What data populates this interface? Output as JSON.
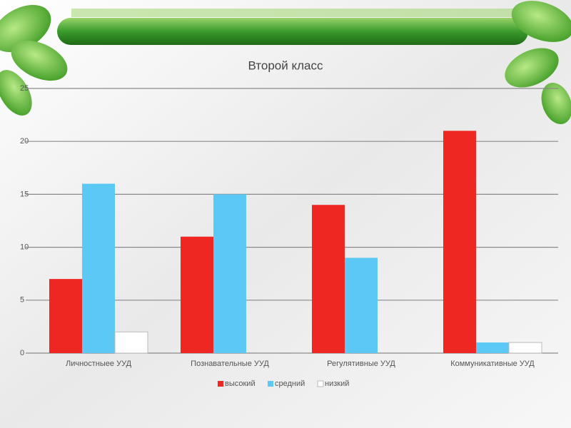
{
  "chart_data": {
    "type": "bar",
    "title": "Второй класс",
    "categories": [
      "Личностныее УУД",
      "Познавательные УУД",
      "Регулятивные УУД",
      "Коммуникативные УУД"
    ],
    "series": [
      {
        "name": "высокий",
        "color": "#ee2722",
        "values": [
          7,
          11,
          14,
          21
        ]
      },
      {
        "name": "средний",
        "color": "#5bc8f5",
        "values": [
          16,
          15,
          9,
          1
        ]
      },
      {
        "name": "низкий",
        "color": "#ffffff",
        "values": [
          2,
          0,
          0,
          1
        ]
      }
    ],
    "ylim": [
      0,
      25
    ],
    "yticks": [
      0,
      5,
      10,
      15,
      20,
      25
    ],
    "grid": true,
    "legend": "bottom"
  }
}
